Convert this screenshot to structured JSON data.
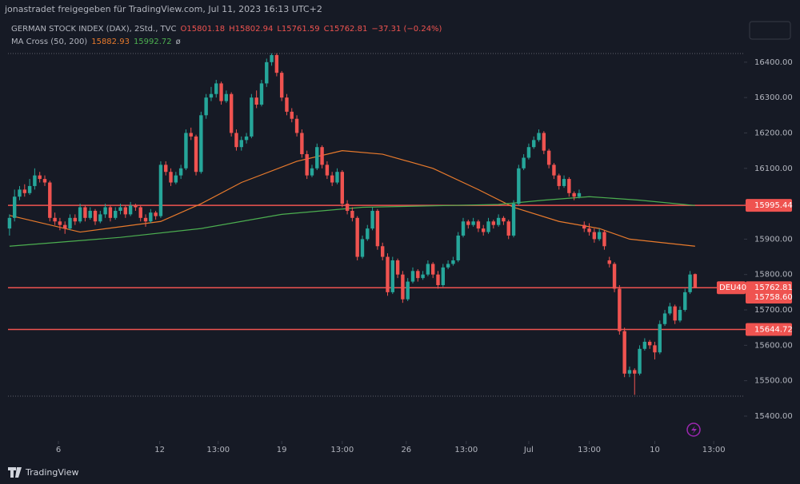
{
  "header": "jonastradet freigegeben für TradingView.com, Jul 11, 2023 16:13 UTC+2",
  "footer": "TradingView",
  "chart_data": {
    "type": "candlestick",
    "legend": {
      "title": "GERMAN STOCK INDEX (DAX), 2Std., TVC",
      "open": "O15801.18",
      "high": "H15802.94",
      "low": "L15761.59",
      "close": "C15762.81",
      "change": "−37.31 (−0.24%)",
      "indicator": "MA Cross (50, 200)",
      "ma_fast": "15882.93",
      "ma_slow": "15992.72",
      "symbol": "ø"
    },
    "up_color": "#26a69a",
    "down_color": "#ef5350",
    "xlim": [
      -0.3,
      145.7
    ],
    "ylim": [
      15339,
      16526
    ],
    "yticks": [
      {
        "value": 15400,
        "label": "15400.00"
      },
      {
        "value": 15500,
        "label": "15500.00"
      },
      {
        "value": 15600,
        "label": "15600.00"
      },
      {
        "value": 15700,
        "label": "15700.00"
      },
      {
        "value": 15800,
        "label": "15800.00"
      },
      {
        "value": 15900,
        "label": "15900.00"
      },
      {
        "value": 16000,
        "label": "16000.00"
      },
      {
        "value": 16100,
        "label": "16100.00"
      },
      {
        "value": 16200,
        "label": "16200.00"
      },
      {
        "value": 16300,
        "label": "16300.00"
      },
      {
        "value": 16400,
        "label": "16400.00"
      }
    ],
    "xticks": [
      {
        "value": 9.7,
        "label": "6"
      },
      {
        "value": 29.8,
        "label": "12"
      },
      {
        "value": 41.4,
        "label": "13:00"
      },
      {
        "value": 54,
        "label": "19"
      },
      {
        "value": 66,
        "label": "13:00"
      },
      {
        "value": 78.7,
        "label": "26"
      },
      {
        "value": 90.6,
        "label": "13:00"
      },
      {
        "value": 103,
        "label": "Jul"
      },
      {
        "value": 115,
        "label": "13:00"
      },
      {
        "value": 128,
        "label": "10"
      },
      {
        "value": 139.7,
        "label": "13:00"
      }
    ],
    "candles": [
      [
        15930,
        15970,
        15910,
        15960
      ],
      [
        15960,
        16040,
        15950,
        16020
      ],
      [
        16020,
        16050,
        16010,
        16040
      ],
      [
        16040,
        16055,
        16020,
        16030
      ],
      [
        16030,
        16070,
        16025,
        16050
      ],
      [
        16050,
        16100,
        16040,
        16080
      ],
      [
        16080,
        16090,
        16060,
        16070
      ],
      [
        16070,
        16080,
        16050,
        16060
      ],
      [
        16060,
        16065,
        15950,
        15960
      ],
      [
        15960,
        15975,
        15940,
        15950
      ],
      [
        15950,
        15960,
        15925,
        15940
      ],
      [
        15940,
        15950,
        15915,
        15930
      ],
      [
        15930,
        15970,
        15925,
        15960
      ],
      [
        15960,
        15970,
        15940,
        15950
      ],
      [
        15950,
        16000,
        15945,
        15990
      ],
      [
        15990,
        15995,
        15950,
        15960
      ],
      [
        15960,
        15990,
        15955,
        15980
      ],
      [
        15980,
        15985,
        15940,
        15950
      ],
      [
        15950,
        15980,
        15945,
        15970
      ],
      [
        15970,
        16000,
        15960,
        15990
      ],
      [
        15990,
        15995,
        15950,
        15960
      ],
      [
        15960,
        15990,
        15955,
        15980
      ],
      [
        15980,
        16000,
        15970,
        15990
      ],
      [
        15990,
        15995,
        15960,
        15970
      ],
      [
        15970,
        16005,
        15965,
        15995
      ],
      [
        15995,
        16000,
        15980,
        15990
      ],
      [
        15990,
        15995,
        15950,
        15960
      ],
      [
        15960,
        15970,
        15935,
        15950
      ],
      [
        15950,
        15985,
        15945,
        15975
      ],
      [
        15975,
        15980,
        15955,
        15965
      ],
      [
        15965,
        16120,
        15960,
        16110
      ],
      [
        16110,
        16120,
        16080,
        16090
      ],
      [
        16090,
        16100,
        16050,
        16060
      ],
      [
        16060,
        16090,
        16055,
        16080
      ],
      [
        16080,
        16110,
        16070,
        16100
      ],
      [
        16100,
        16210,
        16095,
        16200
      ],
      [
        16200,
        16215,
        16180,
        16190
      ],
      [
        16190,
        16195,
        16080,
        16090
      ],
      [
        16090,
        16260,
        16085,
        16250
      ],
      [
        16250,
        16310,
        16240,
        16300
      ],
      [
        16300,
        16330,
        16290,
        16310
      ],
      [
        16310,
        16350,
        16300,
        16340
      ],
      [
        16340,
        16345,
        16280,
        16290
      ],
      [
        16290,
        16320,
        16285,
        16310
      ],
      [
        16310,
        16315,
        16190,
        16200
      ],
      [
        16200,
        16210,
        16150,
        16160
      ],
      [
        16160,
        16190,
        16150,
        16180
      ],
      [
        16180,
        16200,
        16170,
        16190
      ],
      [
        16190,
        16310,
        16185,
        16300
      ],
      [
        16300,
        16320,
        16270,
        16280
      ],
      [
        16280,
        16350,
        16275,
        16340
      ],
      [
        16340,
        16410,
        16330,
        16400
      ],
      [
        16400,
        16425,
        16390,
        16420
      ],
      [
        16420,
        16425,
        16360,
        16370
      ],
      [
        16370,
        16375,
        16290,
        16300
      ],
      [
        16300,
        16310,
        16250,
        16260
      ],
      [
        16260,
        16270,
        16230,
        16240
      ],
      [
        16240,
        16250,
        16190,
        16200
      ],
      [
        16200,
        16210,
        16130,
        16140
      ],
      [
        16140,
        16150,
        16070,
        16080
      ],
      [
        16080,
        16110,
        16075,
        16100
      ],
      [
        16100,
        16170,
        16095,
        16160
      ],
      [
        16160,
        16165,
        16100,
        16110
      ],
      [
        16110,
        16120,
        16070,
        16080
      ],
      [
        16080,
        16090,
        16050,
        16060
      ],
      [
        16060,
        16100,
        16055,
        16090
      ],
      [
        16090,
        16095,
        15990,
        16000
      ],
      [
        16000,
        16010,
        15970,
        15980
      ],
      [
        15980,
        15990,
        15950,
        15960
      ],
      [
        15960,
        15965,
        15840,
        15850
      ],
      [
        15850,
        15910,
        15845,
        15900
      ],
      [
        15900,
        15940,
        15895,
        15930
      ],
      [
        15930,
        15990,
        15925,
        15980
      ],
      [
        15980,
        15985,
        15870,
        15880
      ],
      [
        15880,
        15890,
        15840,
        15850
      ],
      [
        15850,
        15860,
        15740,
        15750
      ],
      [
        15750,
        15850,
        15745,
        15840
      ],
      [
        15840,
        15845,
        15790,
        15800
      ],
      [
        15800,
        15810,
        15720,
        15730
      ],
      [
        15730,
        15790,
        15725,
        15780
      ],
      [
        15780,
        15820,
        15775,
        15810
      ],
      [
        15810,
        15815,
        15780,
        15790
      ],
      [
        15790,
        15810,
        15785,
        15800
      ],
      [
        15800,
        15840,
        15795,
        15830
      ],
      [
        15830,
        15835,
        15790,
        15800
      ],
      [
        15800,
        15810,
        15760,
        15770
      ],
      [
        15770,
        15830,
        15765,
        15820
      ],
      [
        15820,
        15840,
        15815,
        15830
      ],
      [
        15830,
        15850,
        15825,
        15840
      ],
      [
        15840,
        15920,
        15835,
        15910
      ],
      [
        15910,
        15960,
        15905,
        15950
      ],
      [
        15950,
        15955,
        15930,
        15940
      ],
      [
        15940,
        15960,
        15935,
        15950
      ],
      [
        15950,
        15955,
        15920,
        15930
      ],
      [
        15930,
        15940,
        15910,
        15920
      ],
      [
        15920,
        15960,
        15915,
        15950
      ],
      [
        15950,
        15955,
        15930,
        15940
      ],
      [
        15940,
        15970,
        15935,
        15960
      ],
      [
        15960,
        15965,
        15940,
        15950
      ],
      [
        15950,
        15955,
        15900,
        15910
      ],
      [
        15910,
        16010,
        15905,
        16000
      ],
      [
        16000,
        16110,
        15995,
        16100
      ],
      [
        16100,
        16140,
        16095,
        16130
      ],
      [
        16130,
        16170,
        16125,
        16160
      ],
      [
        16160,
        16190,
        16155,
        16180
      ],
      [
        16180,
        16210,
        16175,
        16200
      ],
      [
        16200,
        16205,
        16140,
        16150
      ],
      [
        16150,
        16155,
        16100,
        16110
      ],
      [
        16110,
        16115,
        16070,
        16080
      ],
      [
        16080,
        16085,
        16040,
        16050
      ],
      [
        16050,
        16080,
        16045,
        16070
      ],
      [
        16070,
        16075,
        16020,
        16030
      ],
      [
        16030,
        16035,
        16010,
        16020
      ],
      [
        16020,
        16040,
        16015,
        16030
      ],
      [
        15940,
        15950,
        15920,
        15930
      ],
      [
        15930,
        15945,
        15910,
        15920
      ],
      [
        15920,
        15930,
        15890,
        15900
      ],
      [
        15900,
        15930,
        15895,
        15920
      ],
      [
        15920,
        15925,
        15870,
        15880
      ],
      [
        15840,
        15850,
        15820,
        15830
      ],
      [
        15830,
        15835,
        15750,
        15760
      ],
      [
        15760,
        15770,
        15630,
        15640
      ],
      [
        15640,
        15650,
        15510,
        15520
      ],
      [
        15520,
        15540,
        15510,
        15530
      ],
      [
        15530,
        15535,
        15460,
        15520
      ],
      [
        15520,
        15600,
        15515,
        15590
      ],
      [
        15590,
        15620,
        15585,
        15610
      ],
      [
        15610,
        15615,
        15590,
        15600
      ],
      [
        15600,
        15610,
        15560,
        15580
      ],
      [
        15580,
        15670,
        15575,
        15660
      ],
      [
        15660,
        15700,
        15655,
        15690
      ],
      [
        15690,
        15720,
        15685,
        15710
      ],
      [
        15710,
        15715,
        15660,
        15670
      ],
      [
        15670,
        15710,
        15665,
        15700
      ],
      [
        15700,
        15760,
        15695,
        15750
      ],
      [
        15750,
        15810,
        15745,
        15800
      ],
      [
        15801.18,
        15802.94,
        15761.59,
        15762.81
      ]
    ],
    "series": [
      {
        "name": "MA 50",
        "color": "#e87a2c",
        "x": [
          0,
          14,
          30,
          38,
          46,
          57,
          66,
          74,
          84,
          93,
          100,
          109,
          117,
          123,
          136
        ],
        "values": [
          15967,
          15920,
          15950,
          16000,
          16060,
          16120,
          16150,
          16140,
          16100,
          16040,
          15990,
          15950,
          15930,
          15900,
          15880
        ]
      },
      {
        "name": "MA 200",
        "color": "#4caf50",
        "x": [
          0,
          22,
          38,
          54,
          70,
          87,
          97,
          106,
          115,
          125,
          136
        ],
        "values": [
          15880,
          15905,
          15930,
          15970,
          15990,
          15995,
          15998,
          16010,
          16020,
          16010,
          15995
        ]
      }
    ],
    "hlines": [
      {
        "value": 15995.44,
        "label": "15995.44"
      },
      {
        "value": 15762.81,
        "label": "15762.81",
        "tag": "DEU40"
      },
      {
        "value": 15644.72,
        "label": "15644.72"
      }
    ],
    "price_labels": [
      {
        "value": 15758.6,
        "label": "15758.60"
      }
    ]
  }
}
